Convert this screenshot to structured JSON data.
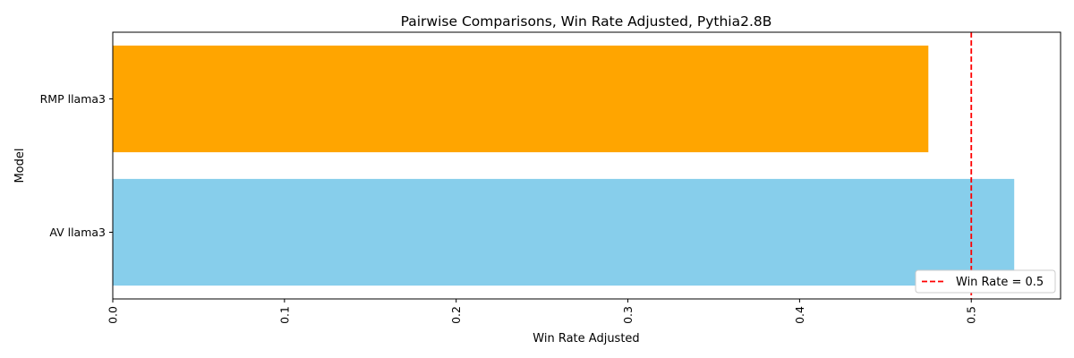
{
  "chart_data": {
    "type": "bar",
    "orientation": "horizontal",
    "title": "Pairwise Comparisons, Win Rate Adjusted, Pythia2.8B",
    "xlabel": "Win Rate Adjusted",
    "ylabel": "Model",
    "xlim": [
      0,
      0.552
    ],
    "xticks": [
      "0.0",
      "0.1",
      "0.2",
      "0.3",
      "0.4",
      "0.5"
    ],
    "xtick_rotation": "vertical",
    "grid": false,
    "categories": [
      "AV llama3",
      "RMP llama3"
    ],
    "values": [
      0.525,
      0.475
    ],
    "colors": [
      "#87CEEB",
      "#FFA500"
    ],
    "reference_line": {
      "value": 0.5,
      "color": "#FF0000",
      "style": "dashed",
      "label": "Win Rate = 0.5"
    },
    "legend": {
      "placement": "lower-right",
      "entries": [
        "Win Rate = 0.5"
      ]
    }
  }
}
